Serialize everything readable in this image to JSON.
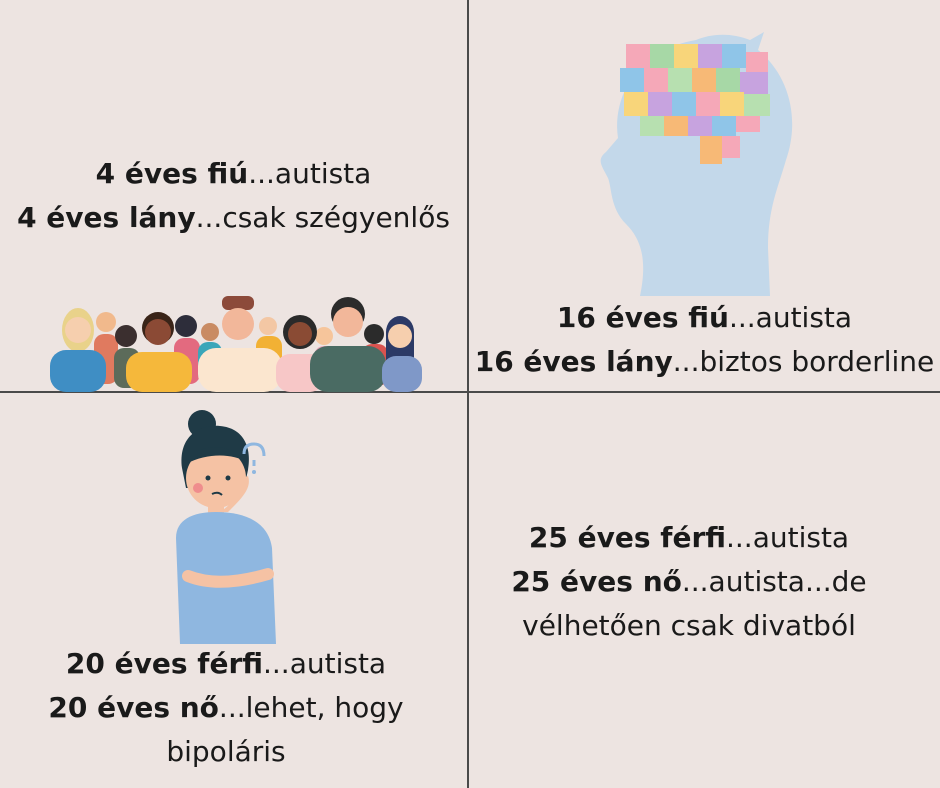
{
  "quadrants": {
    "top_left": {
      "lines": [
        {
          "bold": "4 éves fiú",
          "rest": "...autista"
        },
        {
          "bold": "4 éves lány",
          "rest": "...csak szégyenlős"
        }
      ]
    },
    "top_right": {
      "lines": [
        {
          "bold": "16 éves fiú",
          "rest": "...autista"
        },
        {
          "bold": "16 éves lány",
          "rest": "...biztos borderline"
        }
      ]
    },
    "bottom_left": {
      "lines": [
        {
          "bold": "20 éves férfi",
          "rest": "...autista"
        },
        {
          "bold": "20 éves nő",
          "rest": "...lehet, hogy"
        },
        {
          "bold": "",
          "rest": "bipoláris"
        }
      ]
    },
    "bottom_right": {
      "lines": [
        {
          "bold": "25 éves férfi",
          "rest": "...autista"
        },
        {
          "bold": "25 éves nő",
          "rest": "...autista...de"
        },
        {
          "bold": "",
          "rest": "vélhetően csak divatból"
        }
      ]
    }
  },
  "illustrations": {
    "crowd": "crowd-of-people-icon",
    "head": "puzzle-brain-head-icon",
    "woman": "confused-woman-icon"
  },
  "colors": {
    "background": "#ede4e1",
    "divider": "#4a4a4a",
    "head_silhouette": "#c3d8ea"
  }
}
